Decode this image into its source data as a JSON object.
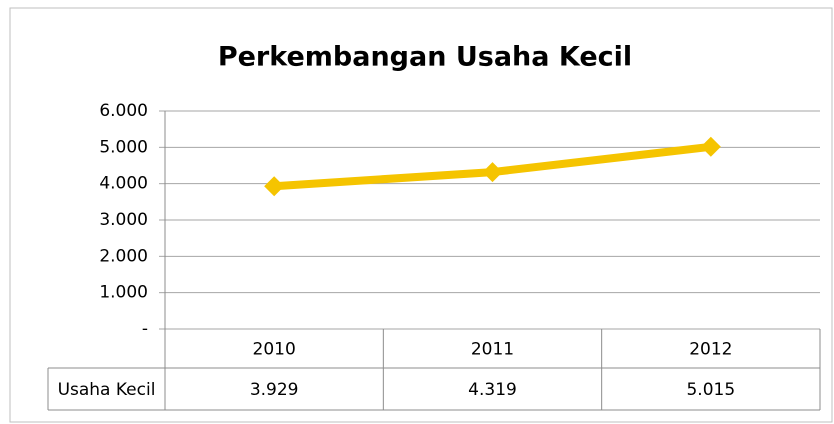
{
  "chart_data": {
    "type": "line",
    "title": "Perkembangan Usaha Kecil",
    "categories": [
      "2010",
      "2011",
      "2012"
    ],
    "series": [
      {
        "name": "Usaha Kecil",
        "color": "#f5c400",
        "values": [
          3929,
          4319,
          5015
        ],
        "value_labels": [
          "3.929",
          "4.319",
          "5.015"
        ]
      }
    ],
    "ylim": [
      0,
      6000
    ],
    "yticks": [
      {
        "value": 0,
        "label": "-"
      },
      {
        "value": 1000,
        "label": "1.000"
      },
      {
        "value": 2000,
        "label": "2.000"
      },
      {
        "value": 3000,
        "label": "3.000"
      },
      {
        "value": 4000,
        "label": "4.000"
      },
      {
        "value": 5000,
        "label": "5.000"
      },
      {
        "value": 6000,
        "label": "6.000"
      }
    ],
    "grid": true
  }
}
